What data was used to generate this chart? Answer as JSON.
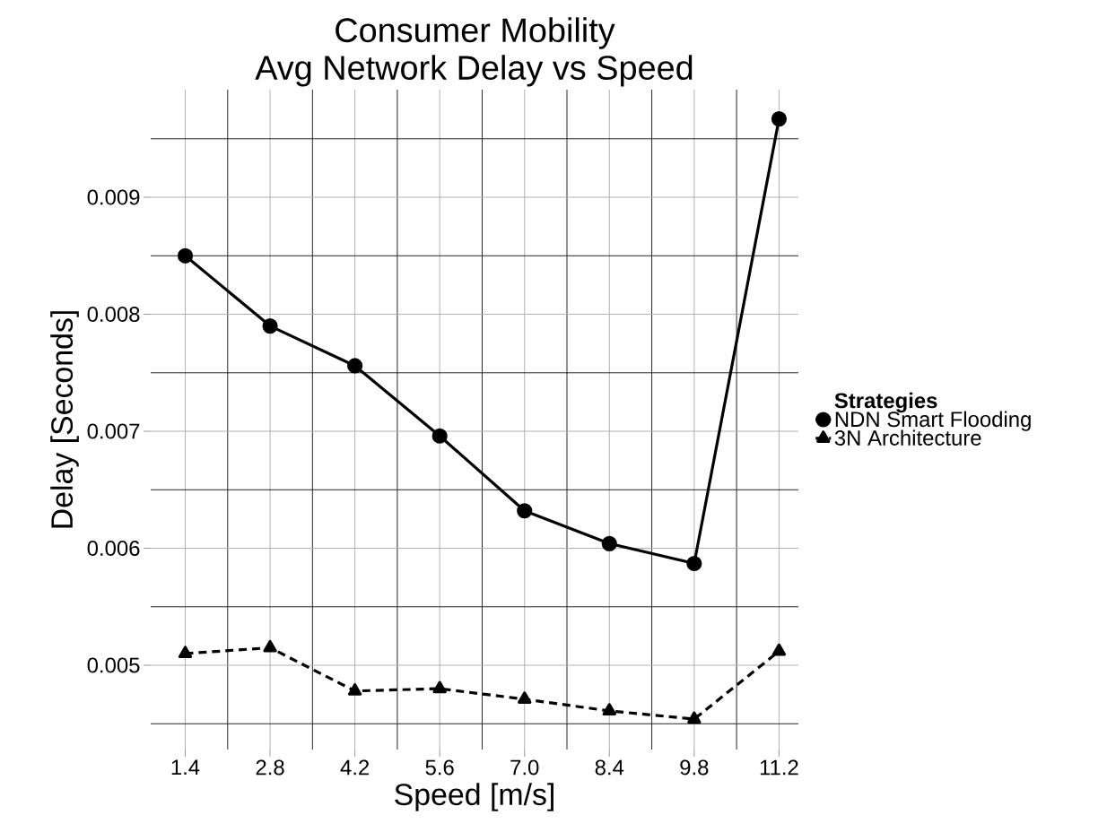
{
  "chart_data": {
    "type": "line",
    "title": "Consumer Mobility",
    "subtitle": "Avg Network Delay vs Speed",
    "xlabel": "Speed [m/s]",
    "ylabel": "Delay [Seconds]",
    "legend_title": "Strategies",
    "x": [
      1.4,
      2.8,
      4.2,
      5.6,
      7.0,
      8.4,
      9.8,
      11.2
    ],
    "series": [
      {
        "name": "NDN Smart Flooding",
        "color": "#000000",
        "marker": "circle",
        "line_style": "solid",
        "values": [
          0.0085,
          0.0079,
          0.00756,
          0.00696,
          0.00632,
          0.00604,
          0.00587,
          0.00967
        ]
      },
      {
        "name": "3N Architecture",
        "color": "#000000",
        "marker": "triangle",
        "line_style": "dashed",
        "values": [
          0.0051,
          0.00515,
          0.00478,
          0.0048,
          0.00471,
          0.00461,
          0.00454,
          0.00512
        ]
      }
    ],
    "xlim": [
      0.83,
      11.52
    ],
    "ylim": [
      0.00428,
      0.00992
    ],
    "xticks": [
      {
        "value": 1.4,
        "label": "1.4"
      },
      {
        "value": 2.8,
        "label": "2.8"
      },
      {
        "value": 4.2,
        "label": "4.2"
      },
      {
        "value": 5.6,
        "label": "5.6"
      },
      {
        "value": 7.0,
        "label": "7.0"
      },
      {
        "value": 8.4,
        "label": "8.4"
      },
      {
        "value": 9.8,
        "label": "9.8"
      },
      {
        "value": 11.2,
        "label": "11.2"
      }
    ],
    "yticks": [
      0.005,
      0.006,
      0.007,
      0.008,
      0.009
    ],
    "grid": true,
    "legend": "right"
  }
}
